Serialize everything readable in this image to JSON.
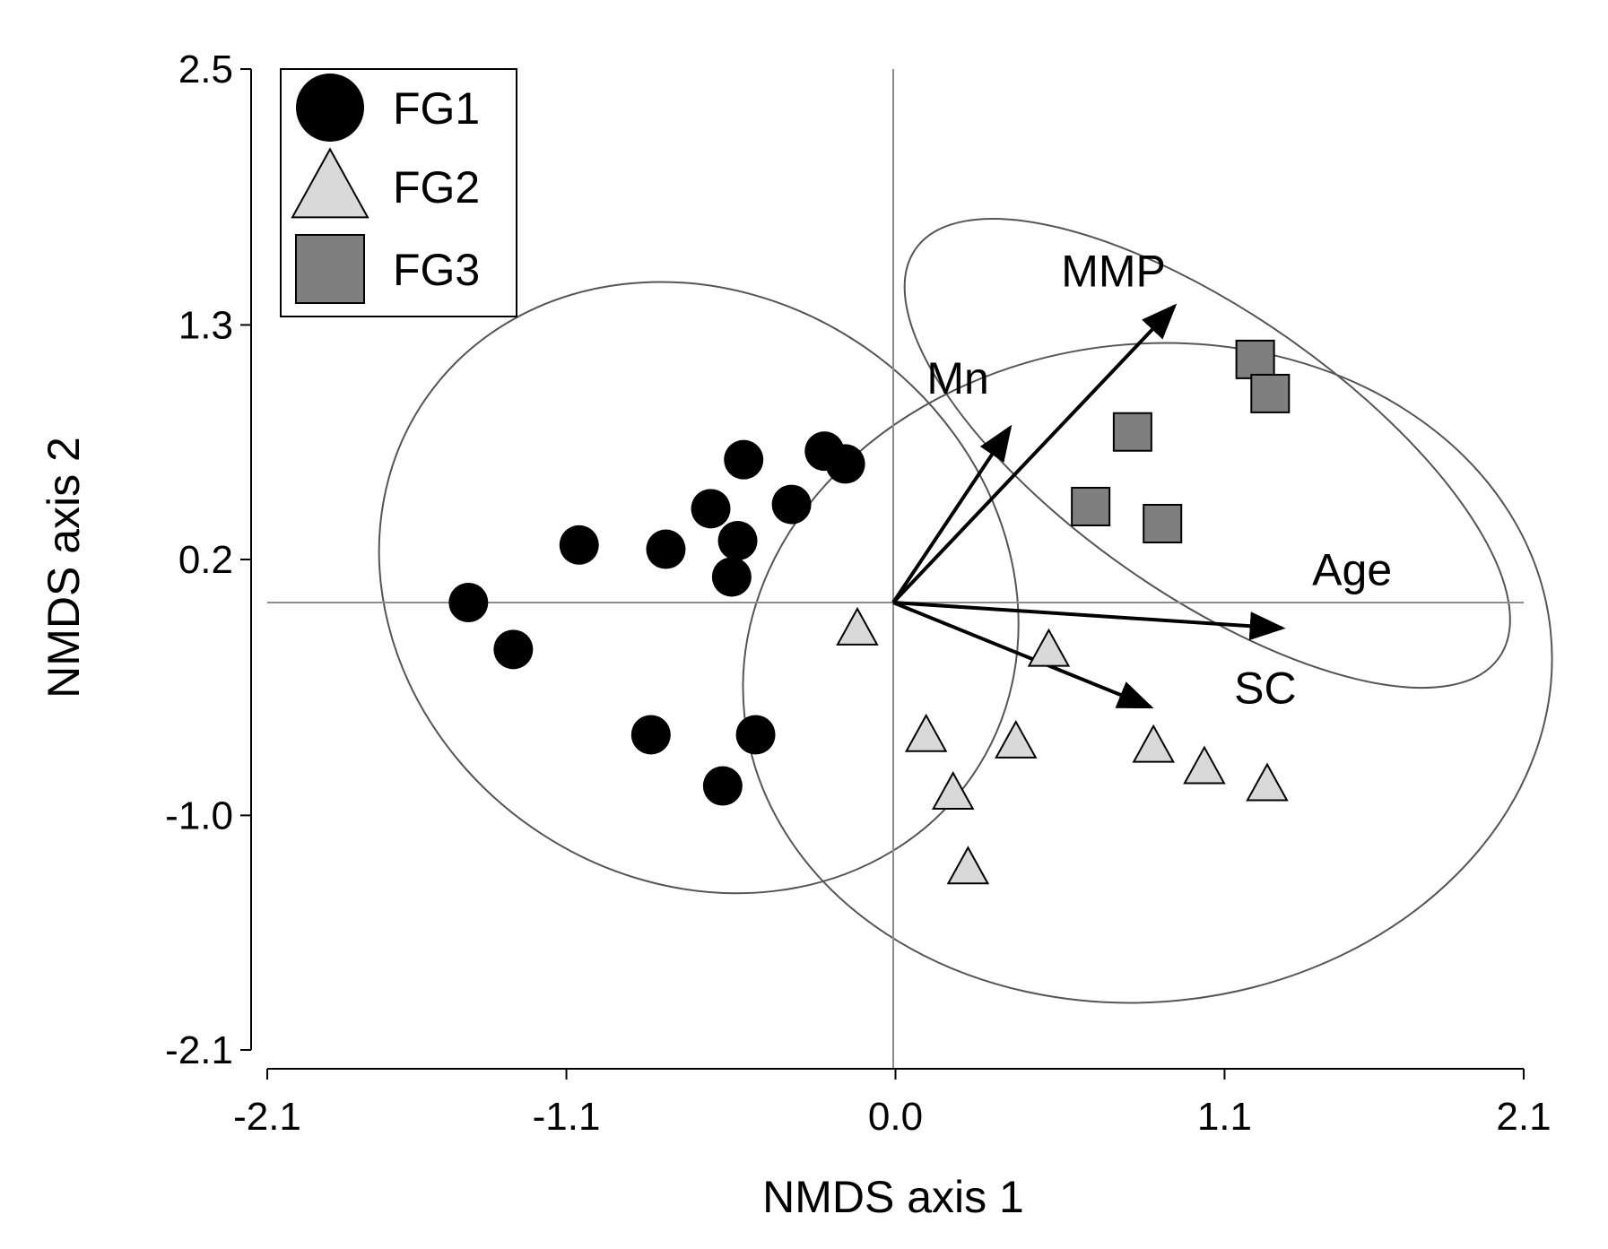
{
  "chart_data": {
    "type": "scatter",
    "title": "",
    "xlabel": "NMDS axis 1",
    "ylabel": "NMDS axis 2",
    "xlim": [
      -2.1,
      2.1
    ],
    "ylim": [
      -2.1,
      2.5
    ],
    "xticks": [
      "-2.1",
      "-1.1",
      "0.0",
      "1.1",
      "2.1"
    ],
    "yticks": [
      "2.5",
      "1.3",
      "0.2",
      "-1.0",
      "-2.1"
    ],
    "xtick_values": [
      -2.1,
      -1.1,
      0.0,
      1.1,
      2.1
    ],
    "ytick_values": [
      2.5,
      1.3,
      0.2,
      -1.0,
      -2.1
    ],
    "grid": false,
    "legend_position": "top-left",
    "origin_lines": [
      0,
      0
    ],
    "series": [
      {
        "name": "FG1",
        "marker": "circle",
        "color": "#000000",
        "points": [
          [
            -1.42,
            0.0
          ],
          [
            -1.27,
            -0.22
          ],
          [
            -1.05,
            0.27
          ],
          [
            -0.76,
            0.25
          ],
          [
            -0.61,
            0.44
          ],
          [
            -0.5,
            0.67
          ],
          [
            -0.52,
            0.29
          ],
          [
            -0.54,
            0.12
          ],
          [
            -0.34,
            0.46
          ],
          [
            -0.23,
            0.71
          ],
          [
            -0.16,
            0.65
          ],
          [
            -0.81,
            -0.62
          ],
          [
            -0.46,
            -0.62
          ],
          [
            -0.57,
            -0.86
          ]
        ]
      },
      {
        "name": "FG2",
        "marker": "triangle",
        "color": "#d9d9d9",
        "points": [
          [
            -0.12,
            -0.13
          ],
          [
            0.52,
            -0.23
          ],
          [
            0.11,
            -0.63
          ],
          [
            0.41,
            -0.66
          ],
          [
            0.87,
            -0.68
          ],
          [
            1.04,
            -0.78
          ],
          [
            1.25,
            -0.86
          ],
          [
            0.2,
            -0.9
          ],
          [
            0.25,
            -1.25
          ]
        ]
      },
      {
        "name": "FG3",
        "marker": "square",
        "color": "#7f7f7f",
        "points": [
          [
            1.21,
            1.14
          ],
          [
            1.26,
            0.98
          ],
          [
            0.8,
            0.8
          ],
          [
            0.66,
            0.45
          ],
          [
            0.9,
            0.37
          ]
        ]
      }
    ],
    "vectors": [
      {
        "name": "MMP",
        "x": 0.94,
        "y": 1.39
      },
      {
        "name": "Mn",
        "x": 0.39,
        "y": 0.82
      },
      {
        "name": "Age",
        "x": 1.3,
        "y": -0.12
      },
      {
        "name": "SC",
        "x": 0.86,
        "y": -0.49
      }
    ],
    "ellipses": [
      {
        "group": "FG1",
        "cx": -0.65,
        "cy": 0.07,
        "rx": 1.11,
        "ry": 1.37,
        "rot": 34.7
      },
      {
        "group": "FG2",
        "cx": 0.85,
        "cy": -0.33,
        "rx": 1.1,
        "ry": 1.9,
        "rot": 84.0
      },
      {
        "group": "FG3",
        "cx": 1.05,
        "cy": 0.7,
        "rx": 0.47,
        "ry": 1.67,
        "rot": -55.0
      }
    ]
  }
}
